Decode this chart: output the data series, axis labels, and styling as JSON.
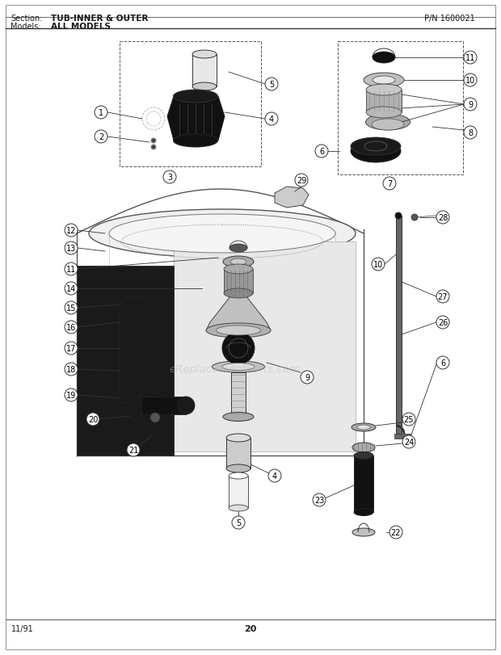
{
  "title_section": "Section:",
  "title_text": "TUB-INNER & OUTER",
  "part_number": "P/N 1600021",
  "models_label": "Models:",
  "models_text": "ALL MODELS",
  "page_number": "20",
  "footer_date": "11/91",
  "bg_color": "#ffffff",
  "text_color": "#1a1a1a",
  "diagram_color": "#1a1a1a",
  "watermark_text": "eReplacementParts.com",
  "watermark_color": "#bbbbbb",
  "watermark_alpha": 0.45
}
